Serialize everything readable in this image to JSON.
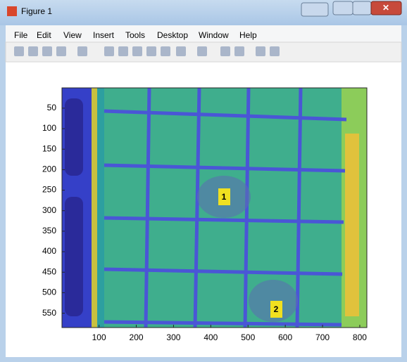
{
  "window": {
    "title": "Figure 1"
  },
  "menu": [
    "File",
    "Edit",
    "View",
    "Insert",
    "Tools",
    "Desktop",
    "Window",
    "Help"
  ],
  "chart_data": {
    "type": "image",
    "xlim": [
      0.5,
      819
    ],
    "ylim": [
      0.5,
      585
    ],
    "y_reversed": true,
    "xticks": [
      100,
      200,
      300,
      400,
      500,
      600,
      700,
      800
    ],
    "yticks": [
      50,
      100,
      150,
      200,
      250,
      300,
      350,
      400,
      450,
      500,
      550
    ],
    "annotations": [
      "1",
      "2"
    ]
  }
}
